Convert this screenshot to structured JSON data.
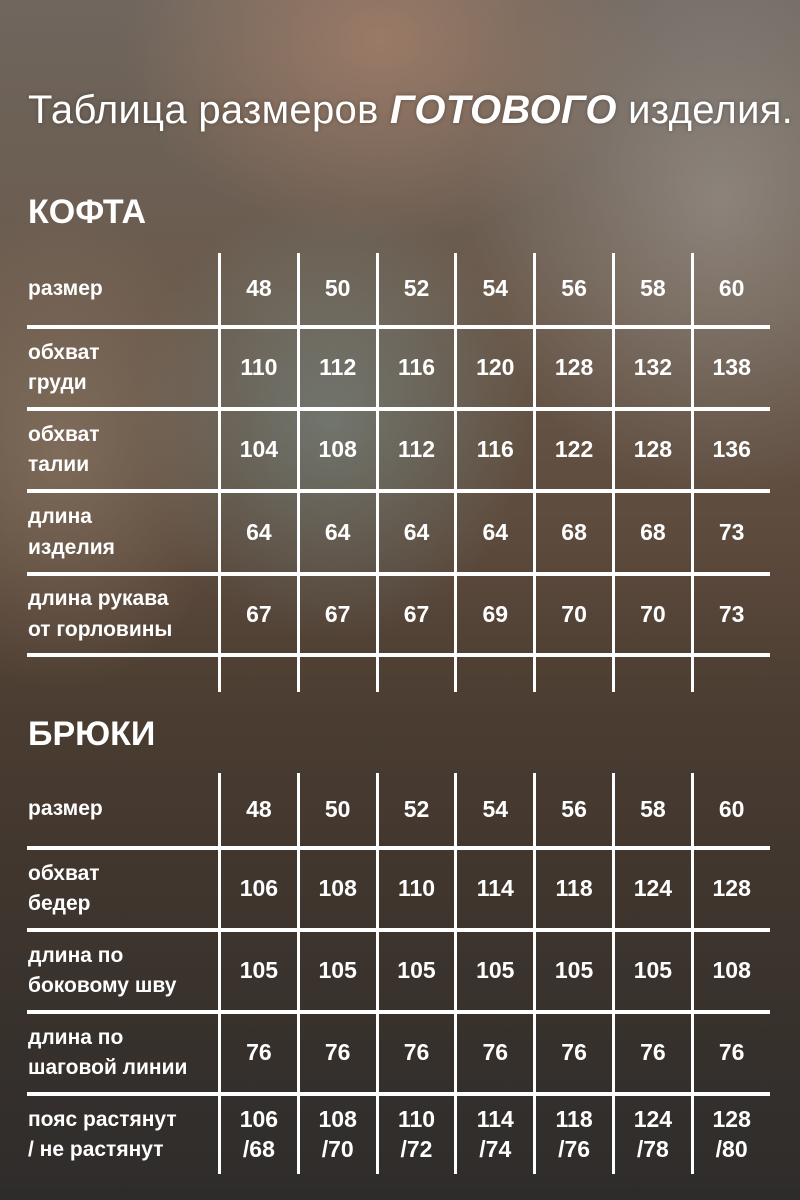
{
  "title": {
    "prefix": "Таблица размеров ",
    "emphasis": "ГОТОВОГО",
    "suffix": " изделия."
  },
  "tables": [
    {
      "heading": "КОФТА",
      "rows": [
        {
          "label": "размер",
          "values": [
            "48",
            "50",
            "52",
            "54",
            "56",
            "58",
            "60"
          ]
        },
        {
          "label": "обхват\nгруди",
          "values": [
            "110",
            "112",
            "116",
            "120",
            "128",
            "132",
            "138"
          ]
        },
        {
          "label": "обхват\nталии",
          "values": [
            "104",
            "108",
            "112",
            "116",
            "122",
            "128",
            "136"
          ]
        },
        {
          "label": "длина\nизделия",
          "values": [
            "64",
            "64",
            "64",
            "64",
            "68",
            "68",
            "73"
          ]
        },
        {
          "label": "длина рукава\nот горловины",
          "values": [
            "67",
            "67",
            "67",
            "69",
            "70",
            "70",
            "73"
          ]
        },
        {
          "label": "",
          "values": [
            "",
            "",
            "",
            "",
            "",
            "",
            ""
          ]
        }
      ]
    },
    {
      "heading": "БРЮКИ",
      "rows": [
        {
          "label": "размер",
          "values": [
            "48",
            "50",
            "52",
            "54",
            "56",
            "58",
            "60"
          ]
        },
        {
          "label": "обхват\nбедер",
          "values": [
            "106",
            "108",
            "110",
            "114",
            "118",
            "124",
            "128"
          ]
        },
        {
          "label": "длина по\nбоковому шву",
          "values": [
            "105",
            "105",
            "105",
            "105",
            "105",
            "105",
            "108"
          ]
        },
        {
          "label": "длина по\nшаговой линии",
          "values": [
            "76",
            "76",
            "76",
            "76",
            "76",
            "76",
            "76"
          ]
        },
        {
          "label": "пояс растянут\n/ не растянут",
          "values": [
            "106\n/68",
            "108\n/70",
            "110\n/72",
            "114\n/74",
            "118\n/76",
            "124\n/78",
            "128\n/80"
          ]
        }
      ]
    }
  ]
}
